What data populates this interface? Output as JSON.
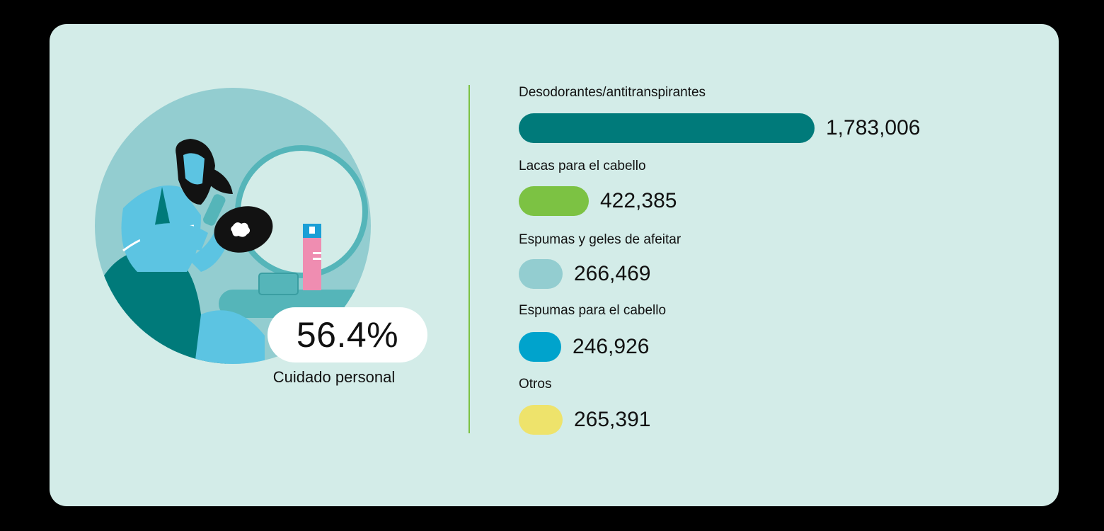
{
  "highlight": {
    "percent": "56.4%",
    "caption": "Cuidado personal"
  },
  "chart_data": {
    "type": "bar",
    "orientation": "horizontal",
    "categories": [
      "Desodorantes/antitranspirantes",
      "Lacas para el cabello",
      "Espumas y geles de afeitar",
      "Espumas para el cabello",
      "Otros"
    ],
    "values": [
      1783006,
      422385,
      266469,
      246926,
      265391
    ],
    "value_labels": [
      "1,783,006",
      "422,385",
      "266,469",
      "246,926",
      "265,391"
    ],
    "colors": [
      "#007a7a",
      "#7cc243",
      "#93cdd0",
      "#00a3cc",
      "#eee36b"
    ],
    "title": "",
    "xlabel": "",
    "ylabel": ""
  }
}
